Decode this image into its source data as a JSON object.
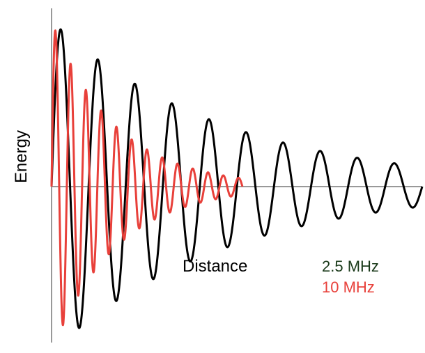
{
  "chart_data": {
    "type": "line",
    "xlabel": "Distance",
    "ylabel": "Energy",
    "xlim": [
      0,
      1
    ],
    "ylim": [
      -1,
      1
    ],
    "grid": false,
    "legend_placement": "bottom-right",
    "axis_color": "#999999",
    "series": [
      {
        "name": "2.5 MHz",
        "color": "#000000",
        "legend_color": "#1a3a1a",
        "cycles": 10,
        "x_end": 1.0,
        "amplitude_start": 1.0,
        "amplitude_end": 0.12
      },
      {
        "name": "10 MHz",
        "color": "#e8403a",
        "legend_color": "#e8403a",
        "cycles": 12.5,
        "x_end": 0.515,
        "amplitude_start": 1.0,
        "amplitude_end": 0.05
      }
    ]
  }
}
